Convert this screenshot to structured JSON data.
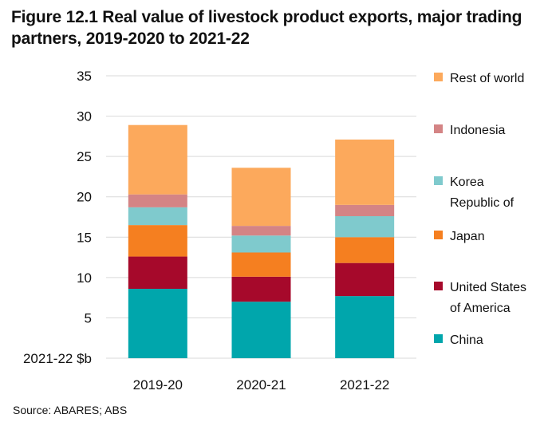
{
  "title": "Figure 12.1 Real value of livestock product exports, major trading partners, 2019-2020 to 2021-22",
  "source": "Source: ABARES; ABS",
  "chart_data": {
    "type": "bar",
    "stacked": true,
    "title": "Figure 12.1 Real value of livestock product exports, major trading partners, 2019-2020 to 2021-22",
    "xlabel": "",
    "ylabel": "2021-22 $b",
    "ylim": [
      0,
      35
    ],
    "yticks": [
      5,
      10,
      15,
      20,
      25,
      30,
      35
    ],
    "grid": true,
    "legend_position": "right",
    "categories": [
      "2019-20",
      "2020-21",
      "2021-22"
    ],
    "series": [
      {
        "name": "China",
        "color": "#00a6ac",
        "values": [
          8.6,
          7.0,
          7.7
        ]
      },
      {
        "name": "United States of America",
        "color": "#a6092b",
        "values": [
          4.0,
          3.1,
          4.1
        ]
      },
      {
        "name": "Japan",
        "color": "#f57f20",
        "values": [
          3.9,
          3.0,
          3.2
        ]
      },
      {
        "name": "Korea Republic of",
        "color": "#7fcacd",
        "values": [
          2.2,
          2.1,
          2.6
        ]
      },
      {
        "name": "Indonesia",
        "color": "#d48485",
        "values": [
          1.6,
          1.2,
          1.4
        ]
      },
      {
        "name": "Rest of world",
        "color": "#fca95c",
        "values": [
          8.6,
          7.2,
          8.1
        ]
      }
    ],
    "legend_order": [
      "Rest of world",
      "Indonesia",
      "Korea Republic of",
      "Japan",
      "United States of America",
      "China"
    ],
    "legend_labels": {
      "Rest of world": [
        "Rest of world"
      ],
      "Indonesia": [
        "Indonesia"
      ],
      "Korea Republic of": [
        "Korea",
        "Republic of"
      ],
      "Japan": [
        "Japan"
      ],
      "United States of America": [
        "United States",
        "of America"
      ],
      "China": [
        "China"
      ]
    }
  }
}
